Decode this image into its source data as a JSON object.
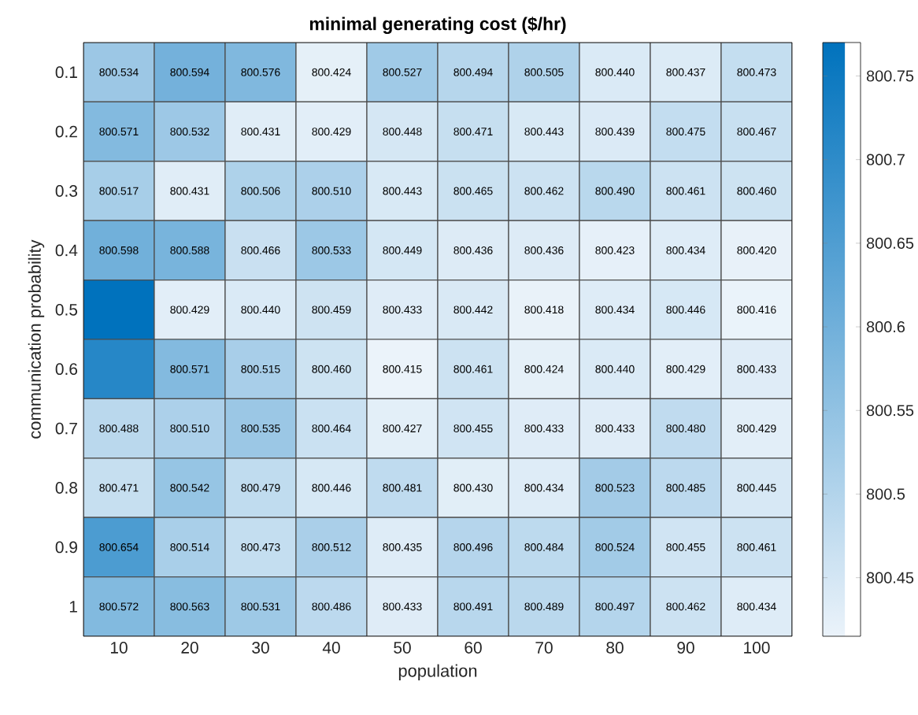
{
  "chart_data": {
    "type": "heatmap",
    "title": "minimal generating cost ($/hr)",
    "xlabel": "population",
    "ylabel": "communication probability",
    "categories": [
      "10",
      "20",
      "30",
      "40",
      "50",
      "60",
      "70",
      "80",
      "90",
      "100"
    ],
    "y_categories": [
      "0.1",
      "0.2",
      "0.3",
      "0.4",
      "0.5",
      "0.6",
      "0.7",
      "0.8",
      "0.9",
      "1"
    ],
    "cells": [
      [
        800.534,
        800.594,
        800.576,
        800.424,
        800.527,
        800.494,
        800.505,
        800.44,
        800.437,
        800.473
      ],
      [
        800.571,
        800.532,
        800.431,
        800.429,
        800.448,
        800.471,
        800.443,
        800.439,
        800.475,
        800.467
      ],
      [
        800.517,
        800.431,
        800.506,
        800.51,
        800.443,
        800.465,
        800.462,
        800.49,
        800.461,
        800.46
      ],
      [
        800.598,
        800.588,
        800.466,
        800.533,
        800.449,
        800.436,
        800.436,
        800.423,
        800.434,
        800.42
      ],
      [
        800.77,
        800.429,
        800.44,
        800.459,
        800.433,
        800.442,
        800.418,
        800.434,
        800.446,
        800.416
      ],
      [
        800.71,
        800.571,
        800.515,
        800.46,
        800.415,
        800.461,
        800.424,
        800.44,
        800.429,
        800.433
      ],
      [
        800.488,
        800.51,
        800.535,
        800.464,
        800.427,
        800.455,
        800.433,
        800.433,
        800.48,
        800.429
      ],
      [
        800.471,
        800.542,
        800.479,
        800.446,
        800.481,
        800.43,
        800.434,
        800.523,
        800.485,
        800.445
      ],
      [
        800.654,
        800.514,
        800.473,
        800.512,
        800.435,
        800.496,
        800.484,
        800.524,
        800.455,
        800.461
      ],
      [
        800.572,
        800.563,
        800.531,
        800.486,
        800.433,
        800.491,
        800.489,
        800.497,
        800.462,
        800.434
      ]
    ],
    "cell_labels": [
      [
        "800.534",
        "800.594",
        "800.576",
        "800.424",
        "800.527",
        "800.494",
        "800.505",
        "800.440",
        "800.437",
        "800.473"
      ],
      [
        "800.571",
        "800.532",
        "800.431",
        "800.429",
        "800.448",
        "800.471",
        "800.443",
        "800.439",
        "800.475",
        "800.467"
      ],
      [
        "800.517",
        "800.431",
        "800.506",
        "800.510",
        "800.443",
        "800.465",
        "800.462",
        "800.490",
        "800.461",
        "800.460"
      ],
      [
        "800.598",
        "800.588",
        "800.466",
        "800.533",
        "800.449",
        "800.436",
        "800.436",
        "800.423",
        "800.434",
        "800.420"
      ],
      [
        null,
        "800.429",
        "800.440",
        "800.459",
        "800.433",
        "800.442",
        "800.418",
        "800.434",
        "800.446",
        "800.416"
      ],
      [
        null,
        "800.571",
        "800.515",
        "800.460",
        "800.415",
        "800.461",
        "800.424",
        "800.440",
        "800.429",
        "800.433"
      ],
      [
        "800.488",
        "800.510",
        "800.535",
        "800.464",
        "800.427",
        "800.455",
        "800.433",
        "800.433",
        "800.480",
        "800.429"
      ],
      [
        "800.471",
        "800.542",
        "800.479",
        "800.446",
        "800.481",
        "800.430",
        "800.434",
        "800.523",
        "800.485",
        "800.445"
      ],
      [
        "800.654",
        "800.514",
        "800.473",
        "800.512",
        "800.435",
        "800.496",
        "800.484",
        "800.524",
        "800.455",
        "800.461"
      ],
      [
        "800.572",
        "800.563",
        "800.531",
        "800.486",
        "800.433",
        "800.491",
        "800.489",
        "800.497",
        "800.462",
        "800.434"
      ]
    ],
    "clim": [
      800.415,
      800.77
    ],
    "cticks": [
      800.45,
      800.5,
      800.55,
      800.6,
      800.65,
      800.7,
      800.75
    ]
  }
}
